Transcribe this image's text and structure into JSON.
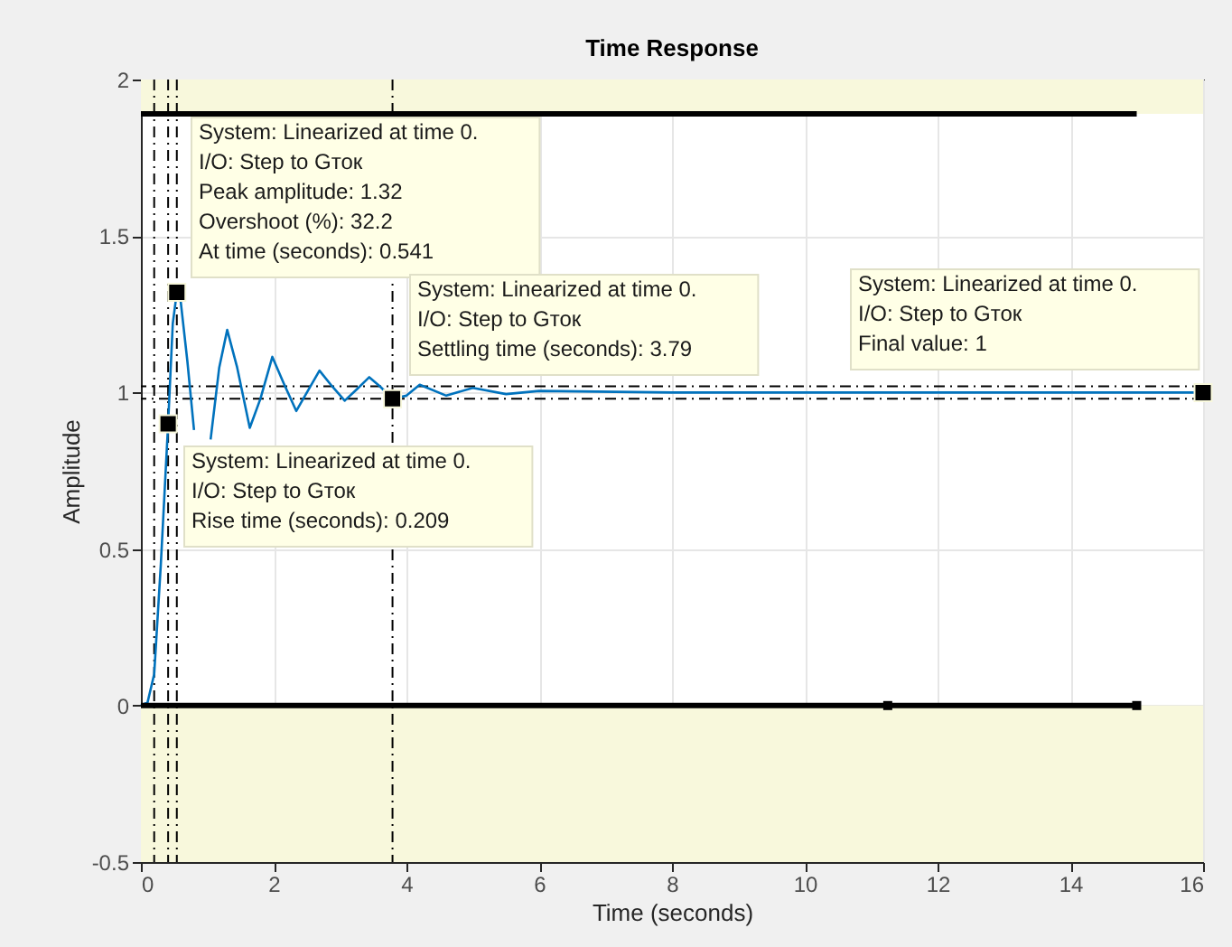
{
  "chart_data": {
    "type": "line",
    "title": "Time Response",
    "xlabel": "Time (seconds)",
    "ylabel": "Amplitude",
    "xlim": [
      0,
      16
    ],
    "ylim": [
      -0.5,
      2
    ],
    "xticks": [
      0,
      2,
      4,
      6,
      8,
      10,
      12,
      14,
      16
    ],
    "yticks": [
      -0.5,
      0,
      0.5,
      1,
      1.5,
      2
    ],
    "grid": true,
    "series": [
      {
        "color": "#0072bd",
        "x": [
          0,
          0.1,
          0.2,
          0.3,
          0.41,
          0.48,
          0.541,
          0.6,
          0.7,
          0.8,
          0.92,
          1.05,
          1.18,
          1.3,
          1.45,
          1.64,
          1.8,
          1.98,
          2.15,
          2.34,
          2.5,
          2.69,
          2.88,
          3.07,
          3.25,
          3.44,
          3.6,
          3.79,
          4.0,
          4.2,
          4.6,
          5.0,
          5.5,
          6.0,
          8,
          16
        ],
        "values": [
          0,
          0.01,
          0.1,
          0.45,
          0.9,
          1.22,
          1.32,
          1.29,
          1.1,
          0.88,
          null,
          0.85,
          1.08,
          1.2,
          1.08,
          0.887,
          0.98,
          1.114,
          1.03,
          0.941,
          1.0,
          1.07,
          1.02,
          0.974,
          1.01,
          1.049,
          1.02,
          0.98,
          0.99,
          1.025,
          0.99,
          1.015,
          0.995,
          1.005,
          1.0,
          1.0
        ]
      },
      {
        "type": "line",
        "color": "#000000",
        "x": [
          0,
          15
        ],
        "values": [
          1.89,
          1.89
        ]
      },
      {
        "type": "line",
        "color": "#000000",
        "marker": "square",
        "x": [
          0,
          11.25,
          15
        ],
        "values": [
          0,
          0,
          0
        ]
      },
      {
        "type": "scatter",
        "color": "#000000",
        "marker": "square",
        "x": [
          0.541,
          0.41,
          3.79,
          16
        ],
        "values": [
          1.32,
          0.9,
          0.98,
          1
        ]
      }
    ],
    "bands": [
      {
        "axis": "y",
        "from": 1.89,
        "to": 2,
        "color": "#f8f8dc"
      },
      {
        "axis": "y",
        "from": -0.5,
        "to": 0,
        "color": "#f8f8dc"
      }
    ],
    "ref_lines": [
      {
        "axis": "y",
        "value": 1.02,
        "line_style": "dashdot"
      },
      {
        "axis": "y",
        "value": 0.98,
        "line_style": "dashdot"
      },
      {
        "axis": "x",
        "value": 0.2,
        "line_style": "dashdot"
      },
      {
        "axis": "x",
        "value": 0.41,
        "line_style": "dashdot"
      },
      {
        "axis": "x",
        "value": 0.541,
        "line_style": "dashdot"
      },
      {
        "axis": "x",
        "value": 3.79,
        "line_style": "dashdot"
      }
    ],
    "annotations": [
      "System: Linearized at time 0.\nI/O: Step to Gток\nPeak amplitude: 1.32\nOvershoot (%): 32.2\nAt time (seconds): 0.541",
      "System: Linearized at time 0.\nI/O: Step to Gток\nRise time (seconds): 0.209",
      "System: Linearized at time 0.\nI/O: Step to Gток\nSettling time (seconds): 3.79",
      "System: Linearized at time 0.\nI/O: Step to Gток\nFinal value: 1"
    ]
  }
}
